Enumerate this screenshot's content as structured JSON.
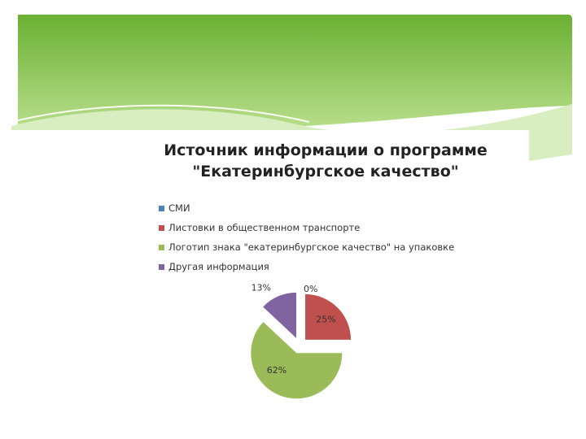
{
  "theme": {
    "banner_dark": "#6ab033",
    "banner_light": "#b9de8c",
    "swoosh": "#d8eec0"
  },
  "chart_data": {
    "type": "pie",
    "title": "Источник информации о программе\n\"Екатеринбургское качество\"",
    "categories": [
      "СМИ",
      "Листовки в общественном транспорте",
      "Логотип знака \"екатеринбургское качество\" на упаковке",
      "Другая информация"
    ],
    "values": [
      0,
      25,
      62,
      13
    ],
    "data_labels": [
      "0%",
      "25%",
      "62%",
      "13%"
    ],
    "colors": [
      "#4f81bd",
      "#c0504d",
      "#9bbb59",
      "#8064a2"
    ],
    "exploded": true,
    "legend_position": "top"
  }
}
